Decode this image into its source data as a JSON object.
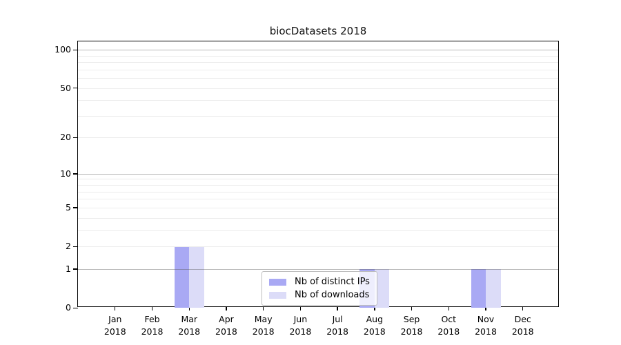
{
  "chart_data": {
    "type": "bar",
    "title": "biocDatasets 2018",
    "x": {
      "months": [
        "Jan",
        "Feb",
        "Mar",
        "Apr",
        "May",
        "Jun",
        "Jul",
        "Aug",
        "Sep",
        "Oct",
        "Nov",
        "Dec"
      ],
      "year": "2018"
    },
    "series": [
      {
        "name": "Nb of distinct IPs",
        "color": "#a9a9f4",
        "values": [
          0,
          0,
          2,
          0,
          0,
          0,
          0,
          1,
          0,
          0,
          1,
          0
        ]
      },
      {
        "name": "Nb of downloads",
        "color": "#dcdcf8",
        "values": [
          0,
          0,
          2,
          0,
          0,
          0,
          0,
          1,
          0,
          0,
          1,
          0
        ]
      }
    ],
    "y_axis": {
      "scale": "log1p",
      "tick_labels": [
        "0",
        "1",
        "2",
        "5",
        "10",
        "20",
        "50",
        "100"
      ],
      "tick_values": [
        0,
        1,
        2,
        5,
        10,
        20,
        50,
        100
      ],
      "gridlines_major": [
        1,
        10,
        100
      ],
      "gridlines_minor": [
        2,
        3,
        4,
        5,
        6,
        7,
        8,
        9,
        20,
        30,
        40,
        50,
        60,
        70,
        80,
        90
      ],
      "ylim": [
        0,
        116
      ]
    },
    "legend": {
      "position": "inside-bottom-center"
    },
    "grid": true,
    "colors": {
      "axis": "#000000",
      "grid_major": "#b9b9b9",
      "grid_minor": "#ececec",
      "background": "#ffffff"
    }
  }
}
